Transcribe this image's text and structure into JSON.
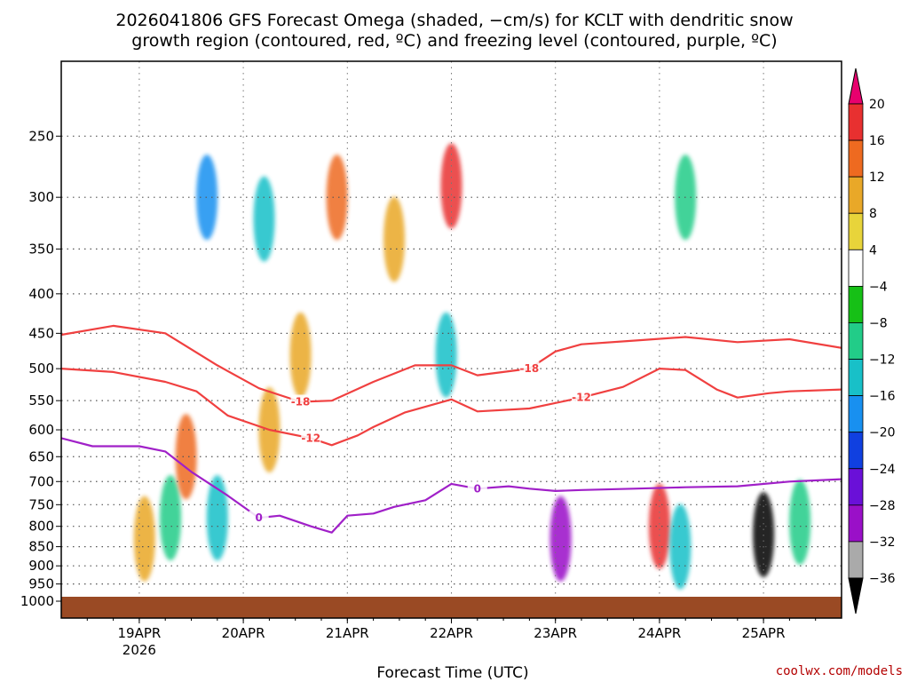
{
  "title": {
    "line1": "2026041806 GFS Forecast Omega (shaded, −cm/s) for KCLT with dendritic snow",
    "line2": "growth region (contoured, red, ºC) and freezing level (contoured, purple, ºC)"
  },
  "credit": "coolwx.com/models",
  "chart_data": {
    "type": "heatmap",
    "title": "2026041806 GFS Forecast Omega (shaded, −cm/s) for KCLT with dendritic snow growth region (contoured, red, ºC) and freezing level (contoured, purple, ºC)",
    "xlabel": "Forecast Time (UTC)",
    "ylabel": "",
    "x_range": [
      0,
      7.5
    ],
    "y_range": [
      1000,
      200
    ],
    "y_scale": "log-pressure",
    "grid": true,
    "y_ticks": [
      250,
      300,
      350,
      400,
      450,
      500,
      550,
      600,
      650,
      700,
      750,
      800,
      850,
      900,
      950,
      1000
    ],
    "x_ticks": [
      {
        "x": 0.75,
        "label": "19APR",
        "sub": "2026"
      },
      {
        "x": 1.75,
        "label": "20APR",
        "sub": ""
      },
      {
        "x": 2.75,
        "label": "21APR",
        "sub": ""
      },
      {
        "x": 3.75,
        "label": "22APR",
        "sub": ""
      },
      {
        "x": 4.75,
        "label": "23APR",
        "sub": ""
      },
      {
        "x": 5.75,
        "label": "24APR",
        "sub": ""
      },
      {
        "x": 6.75,
        "label": "25APR",
        "sub": ""
      }
    ],
    "colorbar": {
      "labels": [
        "20",
        "16",
        "12",
        "8",
        "4",
        "−4",
        "−8",
        "−12",
        "−16",
        "−20",
        "−24",
        "−28",
        "−32",
        "−36"
      ],
      "colors": [
        "#e8006e",
        "#e83030",
        "#ee6a20",
        "#e9a828",
        "#e8d43a",
        "#ffffff",
        "#16c016",
        "#22cc88",
        "#18c0c8",
        "#1890f0",
        "#1040e0",
        "#6a10d8",
        "#9a10c8",
        "#aaaaaa",
        "#000000"
      ]
    },
    "contours": [
      {
        "name": "-18",
        "color": "#f04040",
        "points": [
          [
            0,
            452
          ],
          [
            0.5,
            440
          ],
          [
            1.0,
            450
          ],
          [
            1.5,
            495
          ],
          [
            1.9,
            530
          ],
          [
            2.3,
            552
          ],
          [
            2.6,
            550
          ],
          [
            3.0,
            520
          ],
          [
            3.4,
            495
          ],
          [
            3.75,
            495
          ],
          [
            4.0,
            510
          ],
          [
            4.5,
            500
          ],
          [
            4.75,
            475
          ],
          [
            5.0,
            465
          ],
          [
            5.5,
            460
          ],
          [
            6.0,
            455
          ],
          [
            6.5,
            462
          ],
          [
            7.0,
            458
          ],
          [
            7.5,
            470
          ]
        ]
      },
      {
        "name": "-12",
        "color": "#f04040",
        "points": [
          [
            0,
            500
          ],
          [
            0.5,
            505
          ],
          [
            1.0,
            520
          ],
          [
            1.3,
            535
          ],
          [
            1.6,
            575
          ],
          [
            2.0,
            600
          ],
          [
            2.4,
            615
          ],
          [
            2.6,
            628
          ],
          [
            2.85,
            610
          ],
          [
            3.0,
            595
          ],
          [
            3.3,
            570
          ],
          [
            3.75,
            548
          ],
          [
            4.0,
            568
          ],
          [
            4.5,
            563
          ],
          [
            5.0,
            545
          ],
          [
            5.4,
            528
          ],
          [
            5.75,
            500
          ],
          [
            6.0,
            502
          ],
          [
            6.3,
            532
          ],
          [
            6.5,
            545
          ],
          [
            6.8,
            538
          ],
          [
            7.0,
            535
          ],
          [
            7.5,
            532
          ]
        ]
      },
      {
        "name": "0",
        "color": "#a020c8",
        "points": [
          [
            0,
            615
          ],
          [
            0.3,
            630
          ],
          [
            0.5,
            630
          ],
          [
            0.75,
            630
          ],
          [
            1.0,
            640
          ],
          [
            1.25,
            680
          ],
          [
            1.6,
            730
          ],
          [
            1.9,
            780
          ],
          [
            2.1,
            775
          ],
          [
            2.4,
            800
          ],
          [
            2.6,
            815
          ],
          [
            2.75,
            775
          ],
          [
            3.0,
            770
          ],
          [
            3.2,
            755
          ],
          [
            3.5,
            740
          ],
          [
            3.75,
            705
          ],
          [
            4.0,
            715
          ],
          [
            4.3,
            710
          ],
          [
            4.5,
            715
          ],
          [
            4.75,
            720
          ],
          [
            5.0,
            718
          ],
          [
            5.5,
            715
          ],
          [
            6.0,
            712
          ],
          [
            6.5,
            710
          ],
          [
            7.0,
            700
          ],
          [
            7.5,
            695
          ]
        ]
      }
    ],
    "cells": [
      {
        "x": 0.8,
        "p": 830,
        "value": 10
      },
      {
        "x": 1.05,
        "p": 780,
        "value": -10
      },
      {
        "x": 1.2,
        "p": 650,
        "value": 12
      },
      {
        "x": 1.4,
        "p": 300,
        "value": -16
      },
      {
        "x": 1.5,
        "p": 780,
        "value": -12
      },
      {
        "x": 1.95,
        "p": 320,
        "value": -12
      },
      {
        "x": 2.0,
        "p": 600,
        "value": 8
      },
      {
        "x": 2.3,
        "p": 480,
        "value": 10
      },
      {
        "x": 2.65,
        "p": 300,
        "value": 12
      },
      {
        "x": 3.2,
        "p": 340,
        "value": 8
      },
      {
        "x": 3.75,
        "p": 290,
        "value": 16
      },
      {
        "x": 3.7,
        "p": 480,
        "value": -14
      },
      {
        "x": 4.8,
        "p": 830,
        "value": -30
      },
      {
        "x": 5.75,
        "p": 800,
        "value": 16
      },
      {
        "x": 5.95,
        "p": 850,
        "value": -14
      },
      {
        "x": 6.75,
        "p": 820,
        "value": -36
      },
      {
        "x": 7.1,
        "p": 790,
        "value": -10
      },
      {
        "x": 6.0,
        "p": 300,
        "value": -8
      }
    ]
  }
}
